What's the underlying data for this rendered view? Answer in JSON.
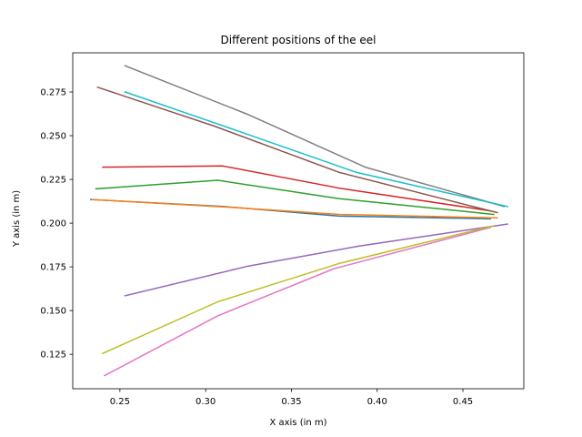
{
  "chart_data": {
    "type": "line",
    "title": "Different positions of the eel",
    "xlabel": "X axis (in m)",
    "ylabel": "Y axis (in m)",
    "xlim": [
      0.2225,
      0.4855
    ],
    "ylim": [
      0.1053,
      0.2974
    ],
    "xticks": [
      0.25,
      0.3,
      0.35,
      0.4,
      0.45
    ],
    "xtick_labels": [
      "0.25",
      "0.30",
      "0.35",
      "0.40",
      "0.45"
    ],
    "yticks": [
      0.125,
      0.15,
      0.175,
      0.2,
      0.225,
      0.25,
      0.275
    ],
    "ytick_labels": [
      "0.125",
      "0.150",
      "0.175",
      "0.200",
      "0.225",
      "0.250",
      "0.275"
    ],
    "grid": false,
    "legend": "none",
    "series": [
      {
        "color": "#1f77b4",
        "x": [
          0.233,
          0.31,
          0.378,
          0.466
        ],
        "y": [
          0.2135,
          0.2095,
          0.204,
          0.2025
        ]
      },
      {
        "color": "#ff7f0e",
        "x": [
          0.234,
          0.31,
          0.378,
          0.47
        ],
        "y": [
          0.2135,
          0.2093,
          0.205,
          0.203
        ]
      },
      {
        "color": "#2ca02c",
        "x": [
          0.236,
          0.307,
          0.378,
          0.468
        ],
        "y": [
          0.2196,
          0.2245,
          0.214,
          0.205
        ]
      },
      {
        "color": "#d62728",
        "x": [
          0.24,
          0.31,
          0.378,
          0.466
        ],
        "y": [
          0.232,
          0.2327,
          0.22,
          0.207
        ]
      },
      {
        "color": "#9467bd",
        "x": [
          0.253,
          0.325,
          0.39,
          0.476
        ],
        "y": [
          0.1585,
          0.1755,
          0.187,
          0.1995
        ]
      },
      {
        "color": "#8c564b",
        "x": [
          0.237,
          0.305,
          0.378,
          0.47
        ],
        "y": [
          0.2777,
          0.2555,
          0.229,
          0.206
        ]
      },
      {
        "color": "#e377c2",
        "x": [
          0.241,
          0.307,
          0.375,
          0.466
        ],
        "y": [
          0.1128,
          0.147,
          0.174,
          0.1975
        ]
      },
      {
        "color": "#7f7f7f",
        "x": [
          0.253,
          0.325,
          0.393,
          0.474
        ],
        "y": [
          0.29,
          0.262,
          0.232,
          0.2095
        ]
      },
      {
        "color": "#bcbd22",
        "x": [
          0.24,
          0.307,
          0.378,
          0.468
        ],
        "y": [
          0.1255,
          0.155,
          0.177,
          0.1985
        ]
      },
      {
        "color": "#17becf",
        "x": [
          0.253,
          0.318,
          0.388,
          0.476
        ],
        "y": [
          0.275,
          0.253,
          0.229,
          0.2095
        ]
      }
    ]
  }
}
